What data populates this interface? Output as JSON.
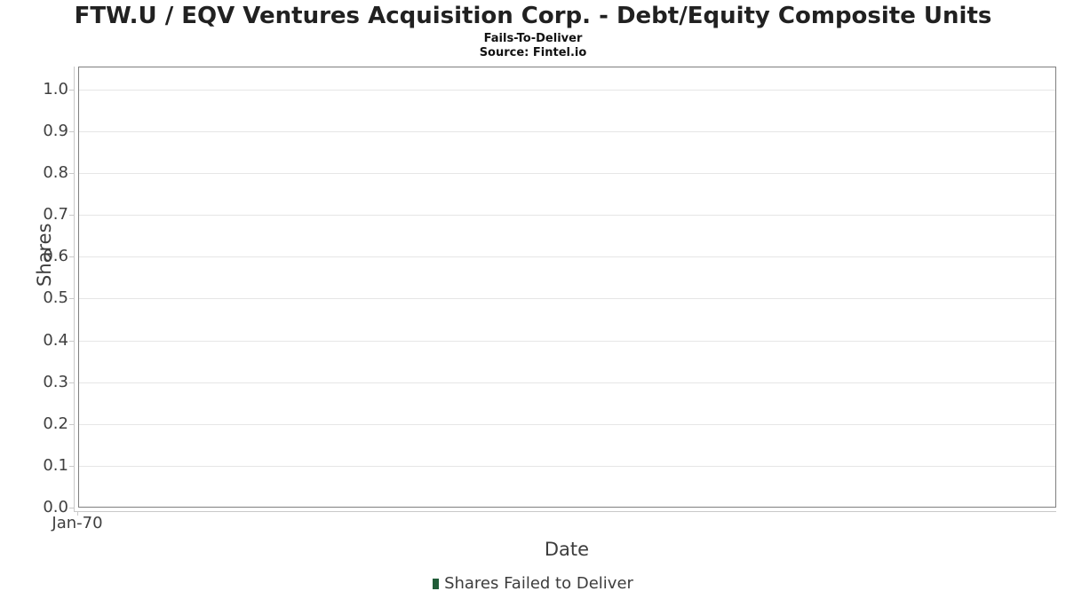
{
  "chart_data": {
    "type": "bar",
    "title": "FTW.U / EQV Ventures Acquisition Corp. - Debt/Equity Composite Units",
    "subtitle": "Fails-To-Deliver",
    "source": "Source: Fintel.io",
    "xlabel": "Date",
    "ylabel": "Shares",
    "categories": [
      "Jan-70"
    ],
    "series": [
      {
        "name": "Shares Failed to Deliver",
        "values": []
      }
    ],
    "ylim": [
      0,
      1.055
    ],
    "yticks": [
      0.0,
      0.1,
      0.2,
      0.3,
      0.4,
      0.5,
      0.6,
      0.7,
      0.8,
      0.9,
      1.0
    ],
    "ytick_labels": [
      "0.0",
      "0.1",
      "0.2",
      "0.3",
      "0.4",
      "0.5",
      "0.6",
      "0.7",
      "0.8",
      "0.9",
      "1.0"
    ],
    "xticks": [
      "Jan-70"
    ],
    "grid": "horizontal",
    "legend_position": "bottom",
    "plot_is_empty": true,
    "colors": {
      "series_green": "#215c38",
      "plot_border": "#7f7f7f",
      "axis_line": "#c9c9c9",
      "gridline": "#e6e6e6",
      "tick_text": "#404040",
      "label_text": "#3d3d3d"
    }
  },
  "legend": {
    "items": [
      {
        "label": "Shares Failed to Deliver",
        "color": "#215c38",
        "marker": "green-square-icon"
      }
    ]
  }
}
